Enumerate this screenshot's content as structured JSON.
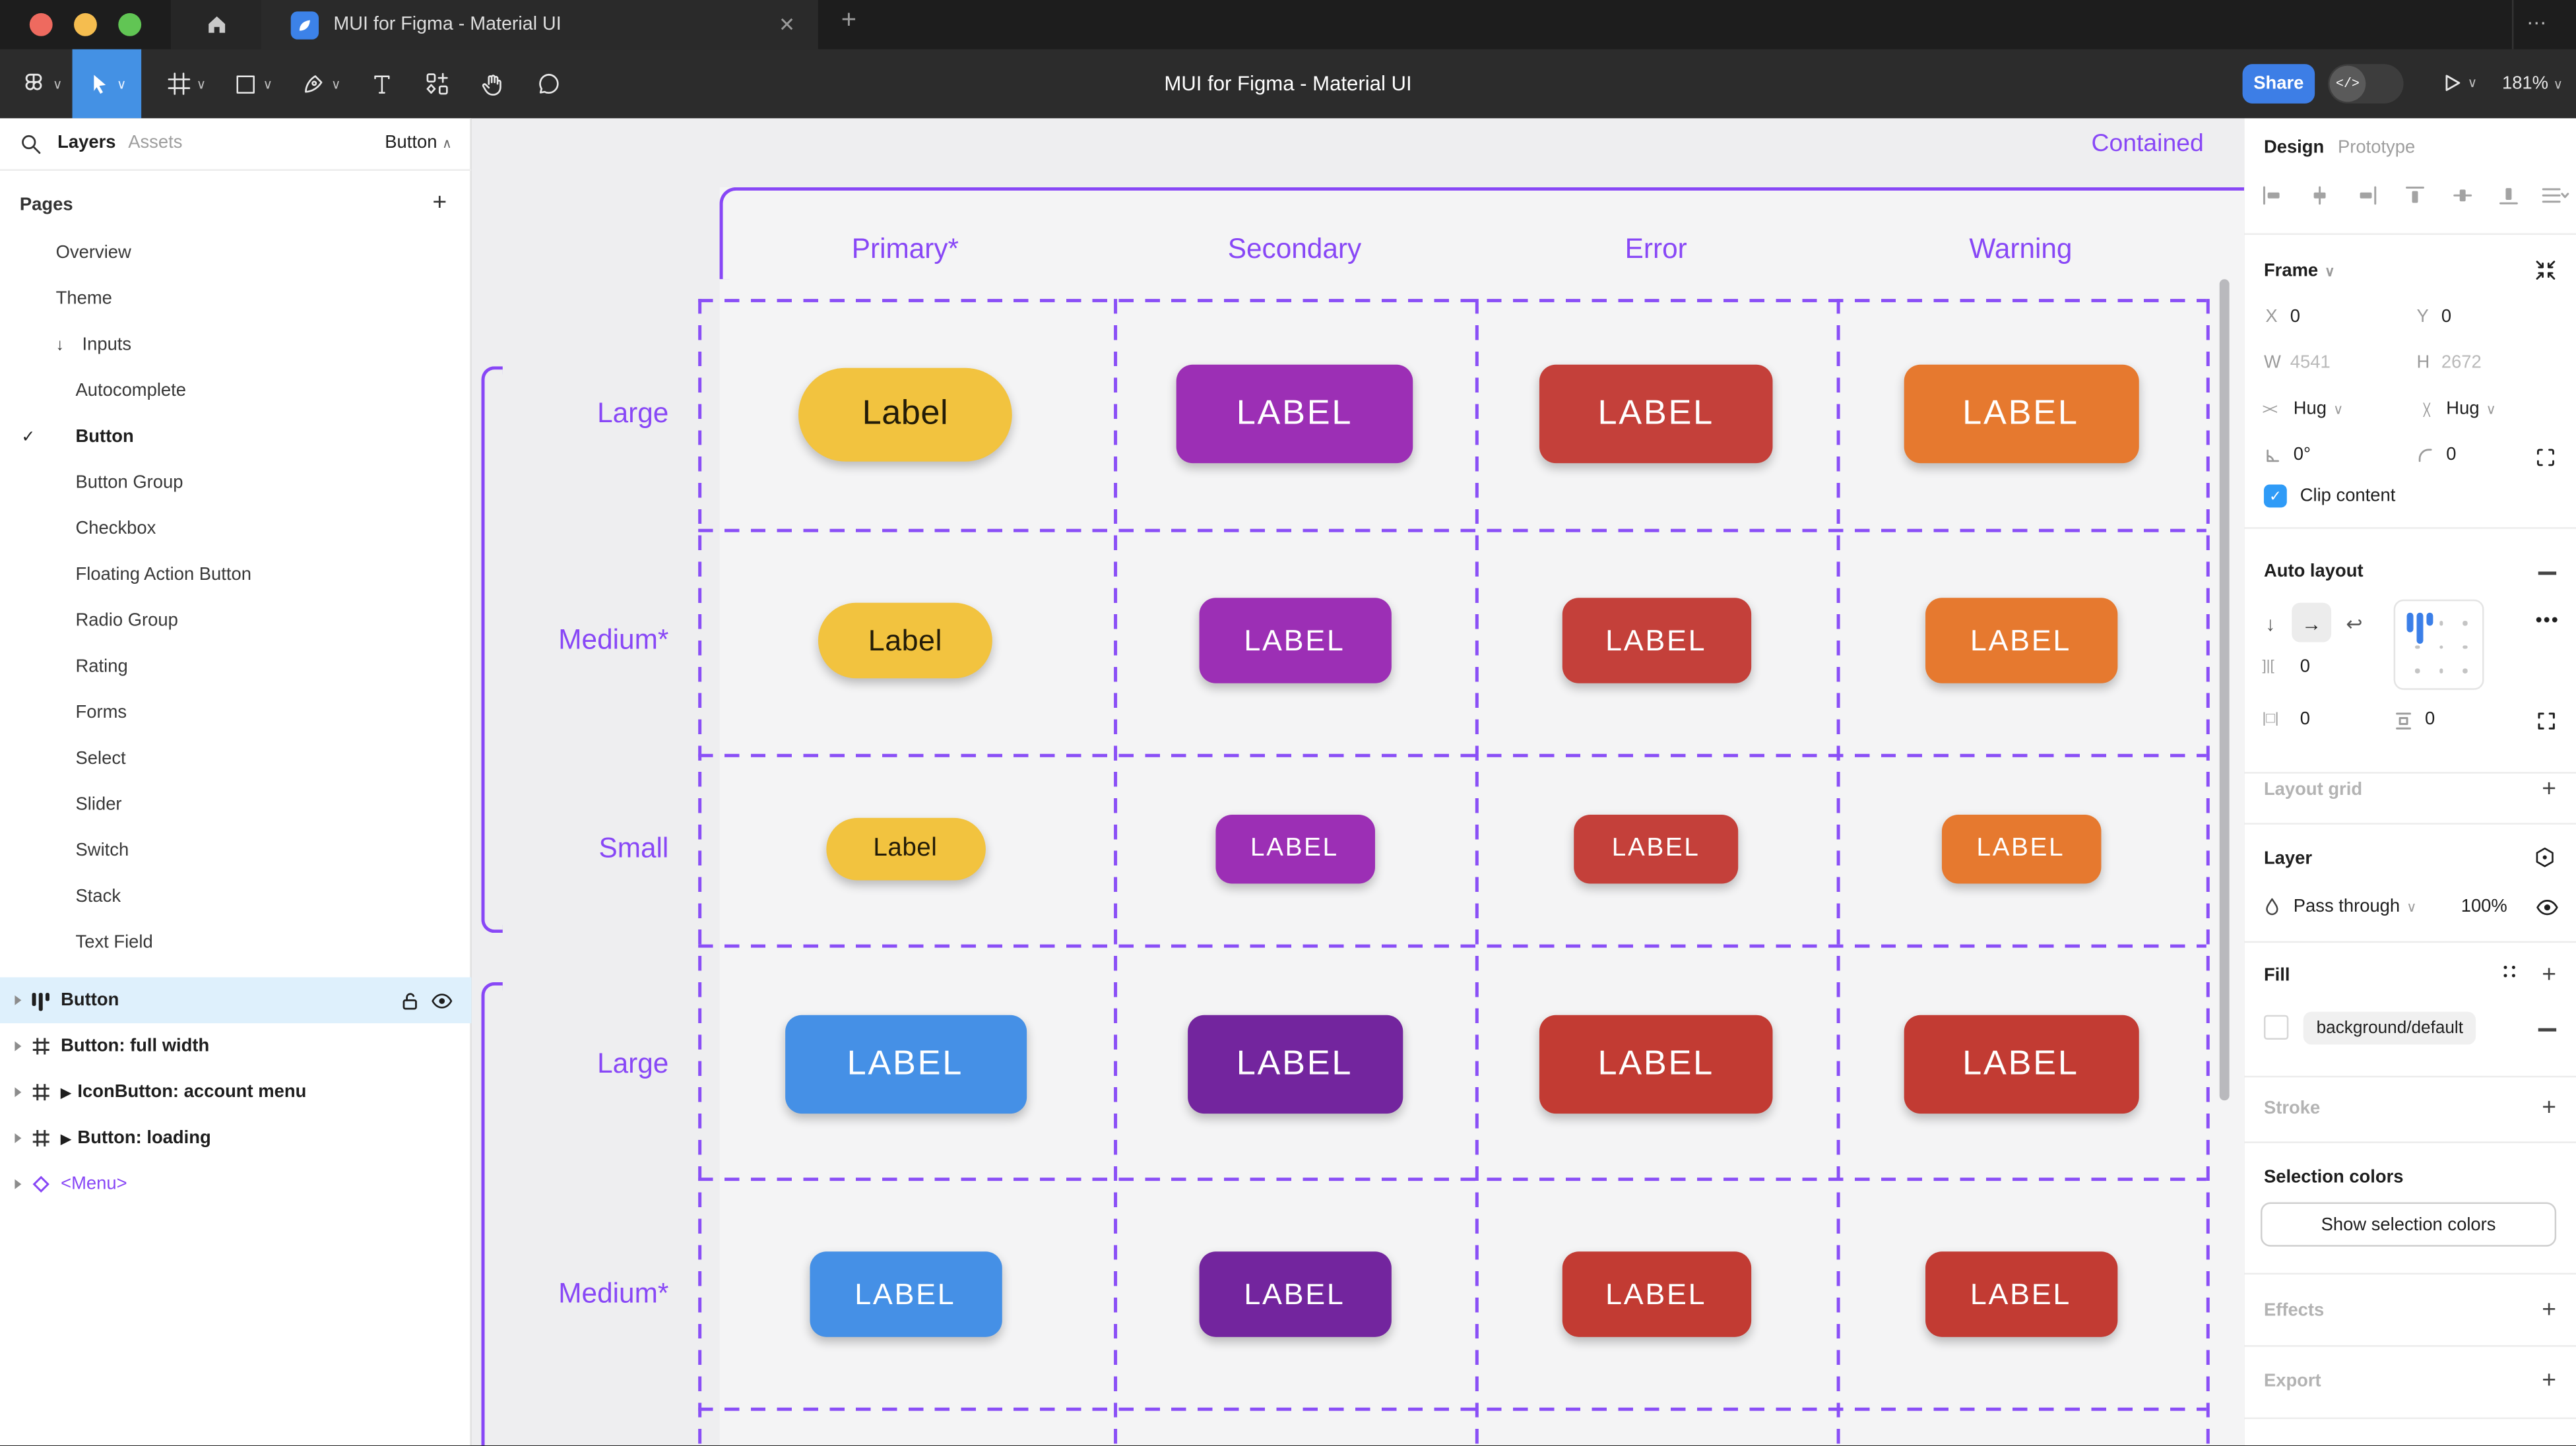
{
  "window": {
    "tab_title": "MUI for Figma - Material UI",
    "canvas_title": "MUI for Figma - Material UI",
    "close_tab": "✕",
    "new_tab": "+",
    "more_icon": "⋯",
    "share_label": "Share",
    "dev_toggle_glyph": "</>",
    "zoom_level": "181%"
  },
  "left_panel": {
    "layers_tab": "Layers",
    "assets_tab": "Assets",
    "page_selector": "Button",
    "pages_header": "Pages",
    "pages": [
      {
        "label": "Overview",
        "indent": 0
      },
      {
        "label": "Theme",
        "indent": 0
      },
      {
        "label": "Inputs",
        "indent": 0,
        "arrow": "↓"
      },
      {
        "label": "Autocomplete",
        "indent": 1
      },
      {
        "label": "Button",
        "indent": 1,
        "checked": true,
        "bold": true
      },
      {
        "label": "Button Group",
        "indent": 1
      },
      {
        "label": "Checkbox",
        "indent": 1
      },
      {
        "label": "Floating Action Button",
        "indent": 1
      },
      {
        "label": "Radio Group",
        "indent": 1
      },
      {
        "label": "Rating",
        "indent": 1
      },
      {
        "label": "Forms",
        "indent": 1
      },
      {
        "label": "Select",
        "indent": 1
      },
      {
        "label": "Slider",
        "indent": 1
      },
      {
        "label": "Switch",
        "indent": 1
      },
      {
        "label": "Stack",
        "indent": 1
      },
      {
        "label": "Text Field",
        "indent": 1
      }
    ],
    "layers": [
      {
        "name": "Button",
        "icon": "auto-layout",
        "selected": true,
        "lock": true,
        "eye": true
      },
      {
        "name": "Button: full width",
        "icon": "frame"
      },
      {
        "name": "IconButton: account menu",
        "icon": "frame",
        "play": true
      },
      {
        "name": "Button: loading",
        "icon": "frame",
        "play": true
      },
      {
        "name": "<Menu>",
        "icon": "instance",
        "purple": true
      }
    ]
  },
  "canvas": {
    "frame_label": "Contained",
    "column_headers": [
      "Primary*",
      "Secondary",
      "Error",
      "Warning"
    ],
    "rows": [
      {
        "label": "Large",
        "group": 0,
        "buttons": [
          {
            "text": "Label",
            "bg": "#F2C33F",
            "fg": "#231C08",
            "pill": true,
            "w": 130,
            "h": 57
          },
          {
            "text": "LABEL",
            "bg": "#9C2FB5",
            "fg": "#FFFFFF",
            "w": 144,
            "h": 60
          },
          {
            "text": "LABEL",
            "bg": "#C4403A",
            "fg": "#FFFFFF",
            "w": 142,
            "h": 60
          },
          {
            "text": "LABEL",
            "bg": "#E6792F",
            "fg": "#FFFFFF",
            "w": 143,
            "h": 60
          }
        ]
      },
      {
        "label": "Medium*",
        "group": 0,
        "buttons": [
          {
            "text": "Label",
            "bg": "#F2C33F",
            "fg": "#231C08",
            "pill": true,
            "w": 106,
            "h": 46
          },
          {
            "text": "LABEL",
            "bg": "#9C2FB5",
            "fg": "#FFFFFF",
            "w": 117,
            "h": 52
          },
          {
            "text": "LABEL",
            "bg": "#C4403A",
            "fg": "#FFFFFF",
            "w": 115,
            "h": 52
          },
          {
            "text": "LABEL",
            "bg": "#E6792F",
            "fg": "#FFFFFF",
            "w": 117,
            "h": 52
          }
        ]
      },
      {
        "label": "Small",
        "group": 0,
        "buttons": [
          {
            "text": "Label",
            "bg": "#F2C33F",
            "fg": "#231C08",
            "pill": true,
            "w": 97,
            "h": 38
          },
          {
            "text": "LABEL",
            "bg": "#9C2FB5",
            "fg": "#FFFFFF",
            "w": 97,
            "h": 42
          },
          {
            "text": "LABEL",
            "bg": "#C4403A",
            "fg": "#FFFFFF",
            "w": 100,
            "h": 42
          },
          {
            "text": "LABEL",
            "bg": "#E6792F",
            "fg": "#FFFFFF",
            "w": 97,
            "h": 42
          }
        ]
      },
      {
        "label": "Large",
        "group": 1,
        "buttons": [
          {
            "text": "LABEL",
            "bg": "#4590E6",
            "fg": "#FFFFFF",
            "w": 147,
            "h": 60
          },
          {
            "text": "LABEL",
            "bg": "#73259E",
            "fg": "#FFFFFF",
            "w": 131,
            "h": 60
          },
          {
            "text": "LABEL",
            "bg": "#C23B33",
            "fg": "#FFFFFF",
            "w": 142,
            "h": 60
          },
          {
            "text": "LABEL",
            "bg": "#C23B33",
            "fg": "#FFFFFF",
            "w": 143,
            "h": 60
          }
        ]
      },
      {
        "label": "Medium*",
        "group": 1,
        "buttons": [
          {
            "text": "LABEL",
            "bg": "#4590E6",
            "fg": "#FFFFFF",
            "w": 117,
            "h": 52
          },
          {
            "text": "LABEL",
            "bg": "#73259E",
            "fg": "#FFFFFF",
            "w": 117,
            "h": 52
          },
          {
            "text": "LABEL",
            "bg": "#C23B33",
            "fg": "#FFFFFF",
            "w": 115,
            "h": 52
          },
          {
            "text": "LABEL",
            "bg": "#C23B33",
            "fg": "#FFFFFF",
            "w": 117,
            "h": 52
          }
        ]
      }
    ]
  },
  "right_panel": {
    "design_tab": "Design",
    "prototype_tab": "Prototype",
    "frame": {
      "title": "Frame",
      "x_label": "X",
      "x_value": "0",
      "y_label": "Y",
      "y_value": "0",
      "w_label": "W",
      "w_value": "4541",
      "h_label": "H",
      "h_value": "2672",
      "hug_horizontal": "Hug",
      "hug_vertical": "Hug",
      "rotation": "0°",
      "corner_radius": "0",
      "clip_label": "Clip content"
    },
    "auto_layout": {
      "title": "Auto layout",
      "gap": "0",
      "padding_h": "0",
      "padding_v": "0"
    },
    "layout_grid_title": "Layout grid",
    "layer": {
      "title": "Layer",
      "blend_mode": "Pass through",
      "opacity": "100%"
    },
    "fill": {
      "title": "Fill",
      "style_name": "background/default"
    },
    "stroke_title": "Stroke",
    "selection_colors_title": "Selection colors",
    "show_selection_button": "Show selection colors",
    "effects_title": "Effects",
    "export_title": "Export"
  },
  "colors": {
    "figma_purple": "#8847F6",
    "accent_blue": "#3D7EE6",
    "selected_tool_blue": "#4491E4",
    "selected_layer_bg": "#DEF0FC",
    "canvas_bg": "#EEEEF0",
    "frame_bg": "#F4F4F5",
    "traffic_red": "#EE6A5F",
    "traffic_yellow": "#F5BD4F",
    "traffic_green": "#61C554"
  }
}
